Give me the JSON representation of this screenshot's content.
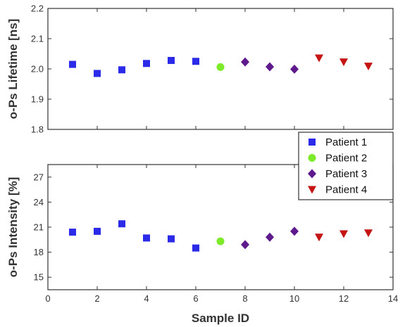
{
  "chart_data": {
    "type": "scatter",
    "xlabel": "Sample ID",
    "xlim": [
      0,
      14
    ],
    "x_ticks": [
      0,
      2,
      4,
      6,
      8,
      10,
      12,
      14
    ],
    "x_tick_labels": [
      "0",
      "2",
      "4",
      "6",
      "8",
      "10",
      "12",
      "14"
    ],
    "legend_position": "top-right of lower panel",
    "grid": false,
    "panels": [
      {
        "ylabel": "o-Ps Lifetime [ns]",
        "ylim": [
          1.8,
          2.2
        ],
        "y_ticks": [
          1.8,
          1.9,
          2.0,
          2.1,
          2.2
        ],
        "y_tick_labels": [
          "1.8",
          "1.9",
          "2.0",
          "2.1",
          "2.2"
        ],
        "series": [
          {
            "name": "Patient 1",
            "x": [
              1,
              2,
              3,
              4,
              5,
              6
            ],
            "y": [
              2.015,
              1.985,
              1.997,
              2.018,
              2.028,
              2.025
            ]
          },
          {
            "name": "Patient 2",
            "x": [
              7
            ],
            "y": [
              2.006
            ]
          },
          {
            "name": "Patient 3",
            "x": [
              8,
              9,
              10
            ],
            "y": [
              2.023,
              2.007,
              1.999
            ]
          },
          {
            "name": "Patient 4",
            "x": [
              11,
              12,
              13
            ],
            "y": [
              2.036,
              2.023,
              2.009
            ]
          }
        ]
      },
      {
        "ylabel": "o-Ps Intensity [%]",
        "ylim": [
          13.5,
          28.5
        ],
        "y_ticks": [
          15,
          18,
          21,
          24,
          27
        ],
        "y_tick_labels": [
          "15",
          "18",
          "21",
          "24",
          "27"
        ],
        "series": [
          {
            "name": "Patient 1",
            "x": [
              1,
              2,
              3,
              4,
              5,
              6
            ],
            "y": [
              20.4,
              20.5,
              21.4,
              19.7,
              19.6,
              18.5
            ]
          },
          {
            "name": "Patient 2",
            "x": [
              7
            ],
            "y": [
              19.3
            ]
          },
          {
            "name": "Patient 3",
            "x": [
              8,
              9,
              10
            ],
            "y": [
              18.9,
              19.8,
              20.5
            ]
          },
          {
            "name": "Patient 4",
            "x": [
              11,
              12,
              13
            ],
            "y": [
              19.8,
              20.2,
              20.3
            ]
          }
        ]
      }
    ],
    "legend": [
      {
        "name": "Patient 1",
        "marker": "square",
        "color": "#2a2ae8"
      },
      {
        "name": "Patient 2",
        "marker": "circle",
        "color": "#7dea2a"
      },
      {
        "name": "Patient 3",
        "marker": "diamond",
        "color": "#5e1a8c"
      },
      {
        "name": "Patient 4",
        "marker": "triangle-down",
        "color": "#c41414"
      }
    ]
  }
}
